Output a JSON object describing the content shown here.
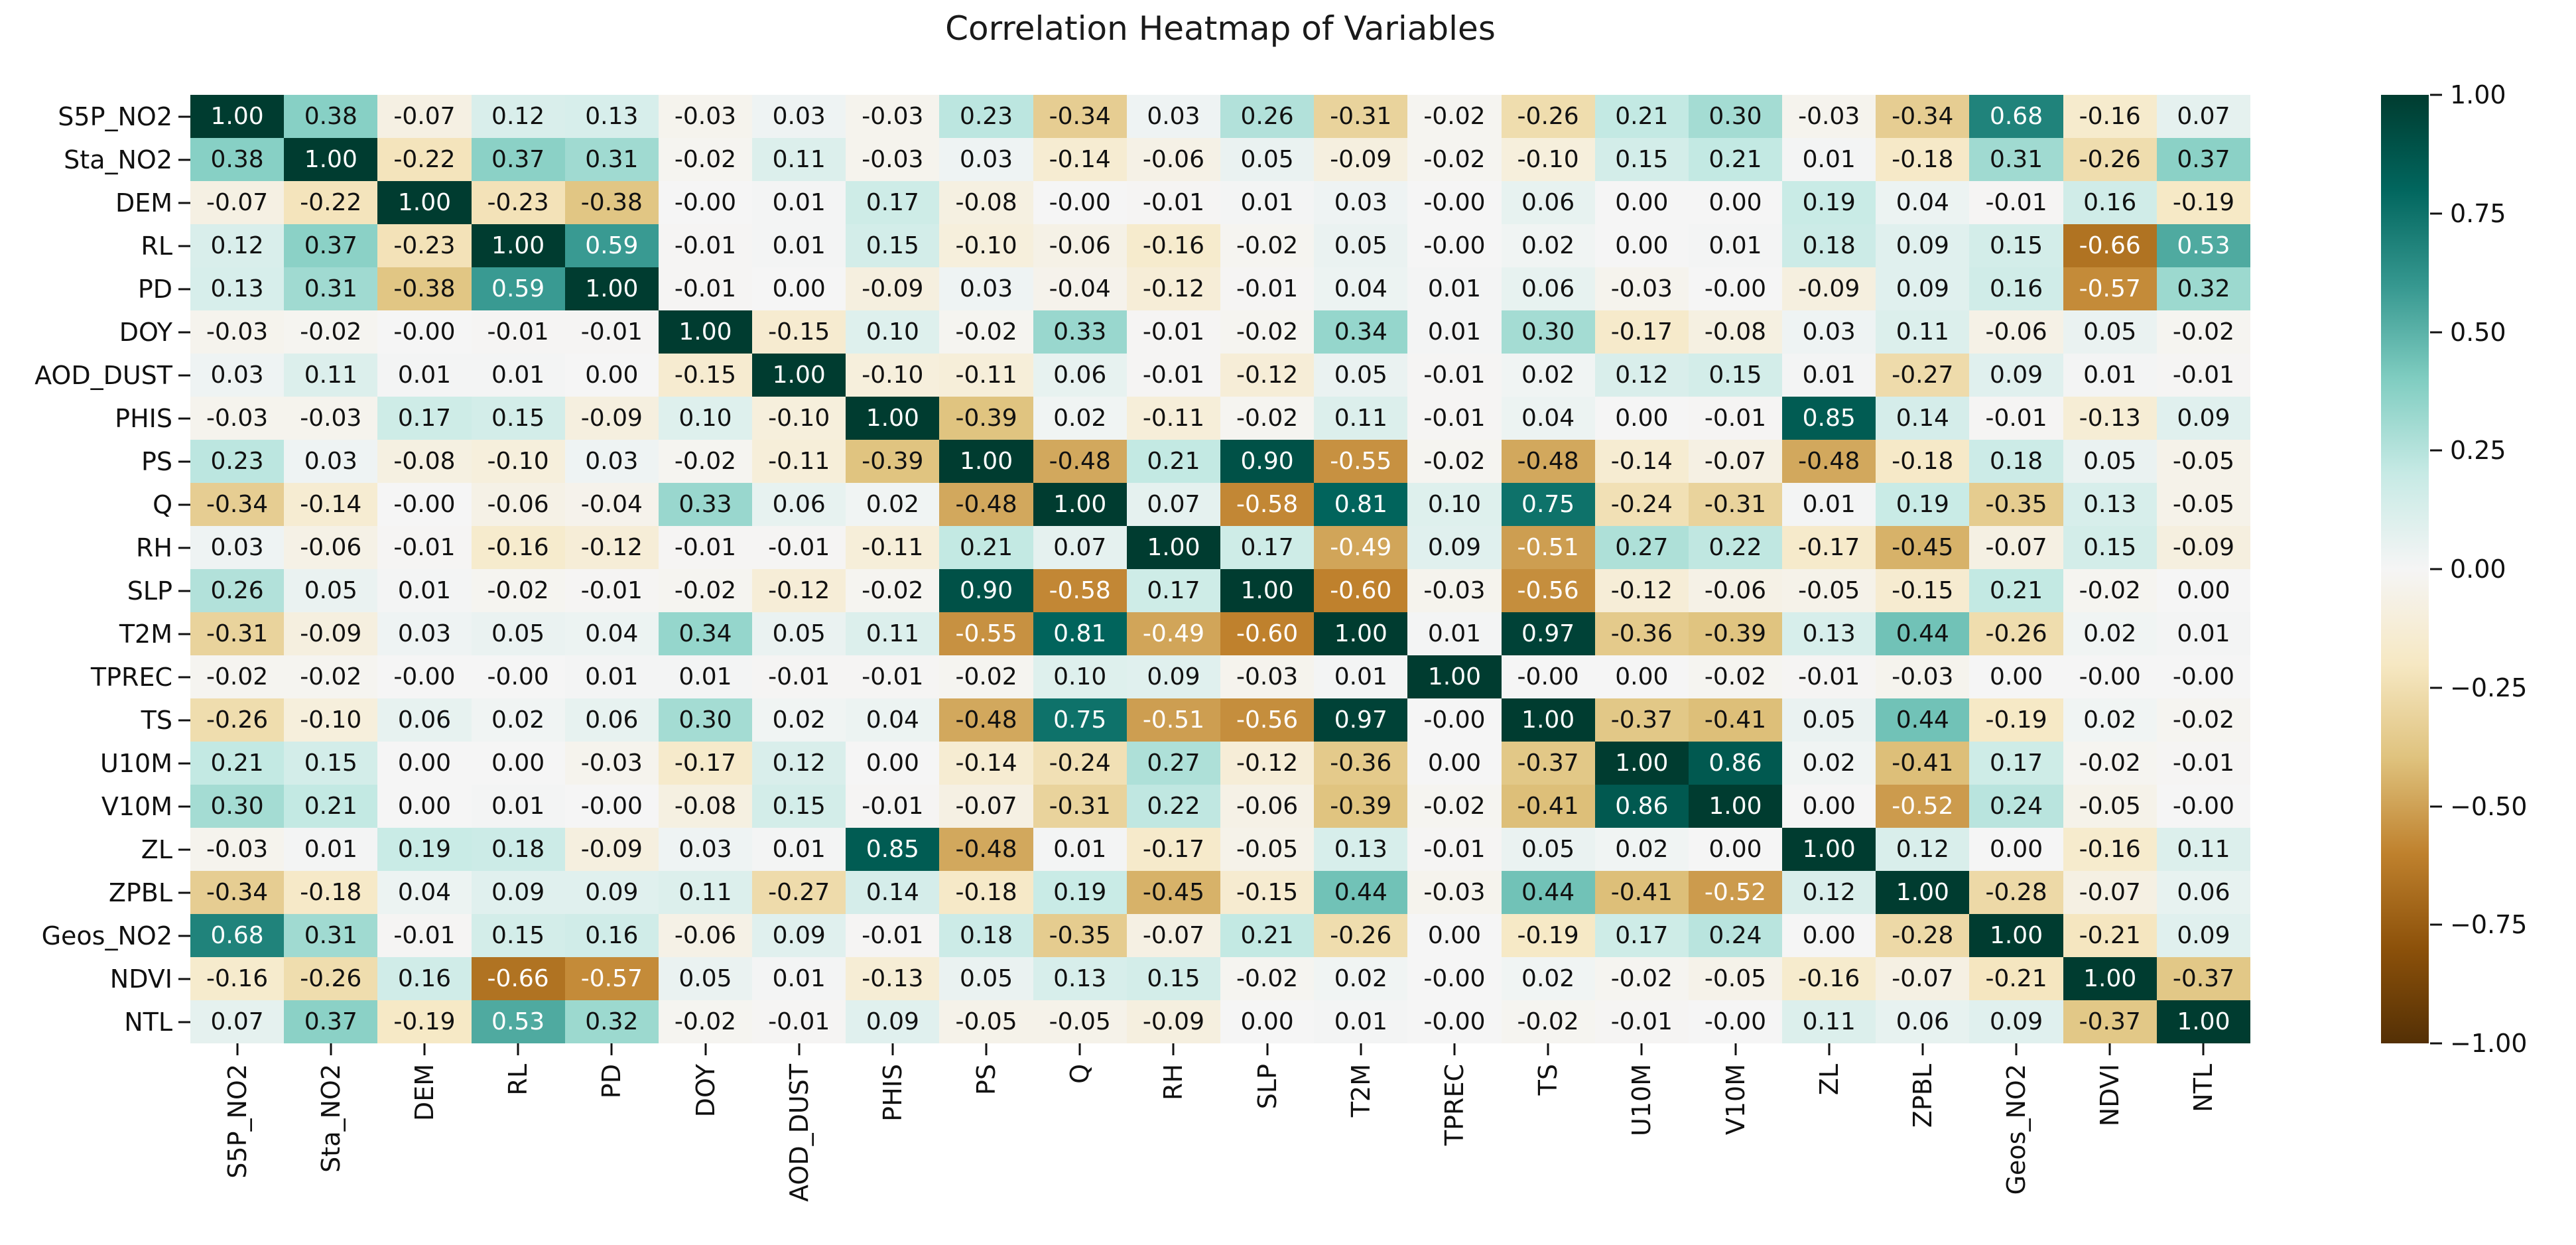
{
  "title": "Correlation Heatmap of Variables",
  "chart_data": {
    "type": "heatmap",
    "title": "Correlation Heatmap of Variables",
    "x_categories": [
      "S5P_NO2",
      "Sta_NO2",
      "DEM",
      "RL",
      "PD",
      "DOY",
      "AOD_DUST",
      "PHIS",
      "PS",
      "Q",
      "RH",
      "SLP",
      "T2M",
      "TPREC",
      "TS",
      "U10M",
      "V10M",
      "ZL",
      "ZPBL",
      "Geos_NO2",
      "NDVI",
      "NTL"
    ],
    "y_categories": [
      "S5P_NO2",
      "Sta_NO2",
      "DEM",
      "RL",
      "PD",
      "DOY",
      "AOD_DUST",
      "PHIS",
      "PS",
      "Q",
      "RH",
      "SLP",
      "T2M",
      "TPREC",
      "TS",
      "U10M",
      "V10M",
      "ZL",
      "ZPBL",
      "Geos_NO2",
      "NDVI",
      "NTL"
    ],
    "values": [
      [
        "1.00",
        "0.38",
        "-0.07",
        "0.12",
        "0.13",
        "-0.03",
        "0.03",
        "-0.03",
        "0.23",
        "-0.34",
        "0.03",
        "0.26",
        "-0.31",
        "-0.02",
        "-0.26",
        "0.21",
        "0.30",
        "-0.03",
        "-0.34",
        "0.68",
        "-0.16",
        "0.07"
      ],
      [
        "0.38",
        "1.00",
        "-0.22",
        "0.37",
        "0.31",
        "-0.02",
        "0.11",
        "-0.03",
        "0.03",
        "-0.14",
        "-0.06",
        "0.05",
        "-0.09",
        "-0.02",
        "-0.10",
        "0.15",
        "0.21",
        "0.01",
        "-0.18",
        "0.31",
        "-0.26",
        "0.37"
      ],
      [
        "-0.07",
        "-0.22",
        "1.00",
        "-0.23",
        "-0.38",
        "-0.00",
        "0.01",
        "0.17",
        "-0.08",
        "-0.00",
        "-0.01",
        "0.01",
        "0.03",
        "-0.00",
        "0.06",
        "0.00",
        "0.00",
        "0.19",
        "0.04",
        "-0.01",
        "0.16",
        "-0.19"
      ],
      [
        "0.12",
        "0.37",
        "-0.23",
        "1.00",
        "0.59",
        "-0.01",
        "0.01",
        "0.15",
        "-0.10",
        "-0.06",
        "-0.16",
        "-0.02",
        "0.05",
        "-0.00",
        "0.02",
        "0.00",
        "0.01",
        "0.18",
        "0.09",
        "0.15",
        "-0.66",
        "0.53"
      ],
      [
        "0.13",
        "0.31",
        "-0.38",
        "0.59",
        "1.00",
        "-0.01",
        "0.00",
        "-0.09",
        "0.03",
        "-0.04",
        "-0.12",
        "-0.01",
        "0.04",
        "0.01",
        "0.06",
        "-0.03",
        "-0.00",
        "-0.09",
        "0.09",
        "0.16",
        "-0.57",
        "0.32"
      ],
      [
        "-0.03",
        "-0.02",
        "-0.00",
        "-0.01",
        "-0.01",
        "1.00",
        "-0.15",
        "0.10",
        "-0.02",
        "0.33",
        "-0.01",
        "-0.02",
        "0.34",
        "0.01",
        "0.30",
        "-0.17",
        "-0.08",
        "0.03",
        "0.11",
        "-0.06",
        "0.05",
        "-0.02"
      ],
      [
        "0.03",
        "0.11",
        "0.01",
        "0.01",
        "0.00",
        "-0.15",
        "1.00",
        "-0.10",
        "-0.11",
        "0.06",
        "-0.01",
        "-0.12",
        "0.05",
        "-0.01",
        "0.02",
        "0.12",
        "0.15",
        "0.01",
        "-0.27",
        "0.09",
        "0.01",
        "-0.01"
      ],
      [
        "-0.03",
        "-0.03",
        "0.17",
        "0.15",
        "-0.09",
        "0.10",
        "-0.10",
        "1.00",
        "-0.39",
        "0.02",
        "-0.11",
        "-0.02",
        "0.11",
        "-0.01",
        "0.04",
        "0.00",
        "-0.01",
        "0.85",
        "0.14",
        "-0.01",
        "-0.13",
        "0.09"
      ],
      [
        "0.23",
        "0.03",
        "-0.08",
        "-0.10",
        "0.03",
        "-0.02",
        "-0.11",
        "-0.39",
        "1.00",
        "-0.48",
        "0.21",
        "0.90",
        "-0.55",
        "-0.02",
        "-0.48",
        "-0.14",
        "-0.07",
        "-0.48",
        "-0.18",
        "0.18",
        "0.05",
        "-0.05"
      ],
      [
        "-0.34",
        "-0.14",
        "-0.00",
        "-0.06",
        "-0.04",
        "0.33",
        "0.06",
        "0.02",
        "-0.48",
        "1.00",
        "0.07",
        "-0.58",
        "0.81",
        "0.10",
        "0.75",
        "-0.24",
        "-0.31",
        "0.01",
        "0.19",
        "-0.35",
        "0.13",
        "-0.05"
      ],
      [
        "0.03",
        "-0.06",
        "-0.01",
        "-0.16",
        "-0.12",
        "-0.01",
        "-0.01",
        "-0.11",
        "0.21",
        "0.07",
        "1.00",
        "0.17",
        "-0.49",
        "0.09",
        "-0.51",
        "0.27",
        "0.22",
        "-0.17",
        "-0.45",
        "-0.07",
        "0.15",
        "-0.09"
      ],
      [
        "0.26",
        "0.05",
        "0.01",
        "-0.02",
        "-0.01",
        "-0.02",
        "-0.12",
        "-0.02",
        "0.90",
        "-0.58",
        "0.17",
        "1.00",
        "-0.60",
        "-0.03",
        "-0.56",
        "-0.12",
        "-0.06",
        "-0.05",
        "-0.15",
        "0.21",
        "-0.02",
        "0.00"
      ],
      [
        "-0.31",
        "-0.09",
        "0.03",
        "0.05",
        "0.04",
        "0.34",
        "0.05",
        "0.11",
        "-0.55",
        "0.81",
        "-0.49",
        "-0.60",
        "1.00",
        "0.01",
        "0.97",
        "-0.36",
        "-0.39",
        "0.13",
        "0.44",
        "-0.26",
        "0.02",
        "0.01"
      ],
      [
        "-0.02",
        "-0.02",
        "-0.00",
        "-0.00",
        "0.01",
        "0.01",
        "-0.01",
        "-0.01",
        "-0.02",
        "0.10",
        "0.09",
        "-0.03",
        "0.01",
        "1.00",
        "-0.00",
        "0.00",
        "-0.02",
        "-0.01",
        "-0.03",
        "0.00",
        "-0.00",
        "-0.00"
      ],
      [
        "-0.26",
        "-0.10",
        "0.06",
        "0.02",
        "0.06",
        "0.30",
        "0.02",
        "0.04",
        "-0.48",
        "0.75",
        "-0.51",
        "-0.56",
        "0.97",
        "-0.00",
        "1.00",
        "-0.37",
        "-0.41",
        "0.05",
        "0.44",
        "-0.19",
        "0.02",
        "-0.02"
      ],
      [
        "0.21",
        "0.15",
        "0.00",
        "0.00",
        "-0.03",
        "-0.17",
        "0.12",
        "0.00",
        "-0.14",
        "-0.24",
        "0.27",
        "-0.12",
        "-0.36",
        "0.00",
        "-0.37",
        "1.00",
        "0.86",
        "0.02",
        "-0.41",
        "0.17",
        "-0.02",
        "-0.01"
      ],
      [
        "0.30",
        "0.21",
        "0.00",
        "0.01",
        "-0.00",
        "-0.08",
        "0.15",
        "-0.01",
        "-0.07",
        "-0.31",
        "0.22",
        "-0.06",
        "-0.39",
        "-0.02",
        "-0.41",
        "0.86",
        "1.00",
        "0.00",
        "-0.52",
        "0.24",
        "-0.05",
        "-0.00"
      ],
      [
        "-0.03",
        "0.01",
        "0.19",
        "0.18",
        "-0.09",
        "0.03",
        "0.01",
        "0.85",
        "-0.48",
        "0.01",
        "-0.17",
        "-0.05",
        "0.13",
        "-0.01",
        "0.05",
        "0.02",
        "0.00",
        "1.00",
        "0.12",
        "0.00",
        "-0.16",
        "0.11"
      ],
      [
        "-0.34",
        "-0.18",
        "0.04",
        "0.09",
        "0.09",
        "0.11",
        "-0.27",
        "0.14",
        "-0.18",
        "0.19",
        "-0.45",
        "-0.15",
        "0.44",
        "-0.03",
        "0.44",
        "-0.41",
        "-0.52",
        "0.12",
        "1.00",
        "-0.28",
        "-0.07",
        "0.06"
      ],
      [
        "0.68",
        "0.31",
        "-0.01",
        "0.15",
        "0.16",
        "-0.06",
        "0.09",
        "-0.01",
        "0.18",
        "-0.35",
        "-0.07",
        "0.21",
        "-0.26",
        "0.00",
        "-0.19",
        "0.17",
        "0.24",
        "0.00",
        "-0.28",
        "1.00",
        "-0.21",
        "0.09"
      ],
      [
        "-0.16",
        "-0.26",
        "0.16",
        "-0.66",
        "-0.57",
        "0.05",
        "0.01",
        "-0.13",
        "0.05",
        "0.13",
        "0.15",
        "-0.02",
        "0.02",
        "-0.00",
        "0.02",
        "-0.02",
        "-0.05",
        "-0.16",
        "-0.07",
        "-0.21",
        "1.00",
        "-0.37"
      ],
      [
        "0.07",
        "0.37",
        "-0.19",
        "0.53",
        "0.32",
        "-0.02",
        "-0.01",
        "0.09",
        "-0.05",
        "-0.05",
        "-0.09",
        "0.00",
        "0.01",
        "-0.00",
        "-0.02",
        "-0.01",
        "-0.00",
        "0.11",
        "0.06",
        "0.09",
        "-0.37",
        "1.00"
      ]
    ],
    "value_range": [
      -1,
      1
    ],
    "grid": "off",
    "legend_position": "right-colorbar",
    "colorbar_ticks": [
      "1.00",
      "0.75",
      "0.50",
      "0.25",
      "0.00",
      "−0.25",
      "−0.50",
      "−0.75",
      "−1.00"
    ],
    "colormap_name": "BrBG (brown-white-teal diverging)",
    "colormap_anchors_top_to_bottom": [
      "#003c30",
      "#01665e",
      "#35978f",
      "#80cdc1",
      "#c7eae5",
      "#f5f5f5",
      "#f6e8c3",
      "#dfc27d",
      "#bf812d",
      "#8c510a",
      "#543005"
    ],
    "annotation_colors": {
      "on_dark": "#ffffff",
      "on_light": "#111111",
      "white_text_abs_threshold": 0.49
    }
  }
}
